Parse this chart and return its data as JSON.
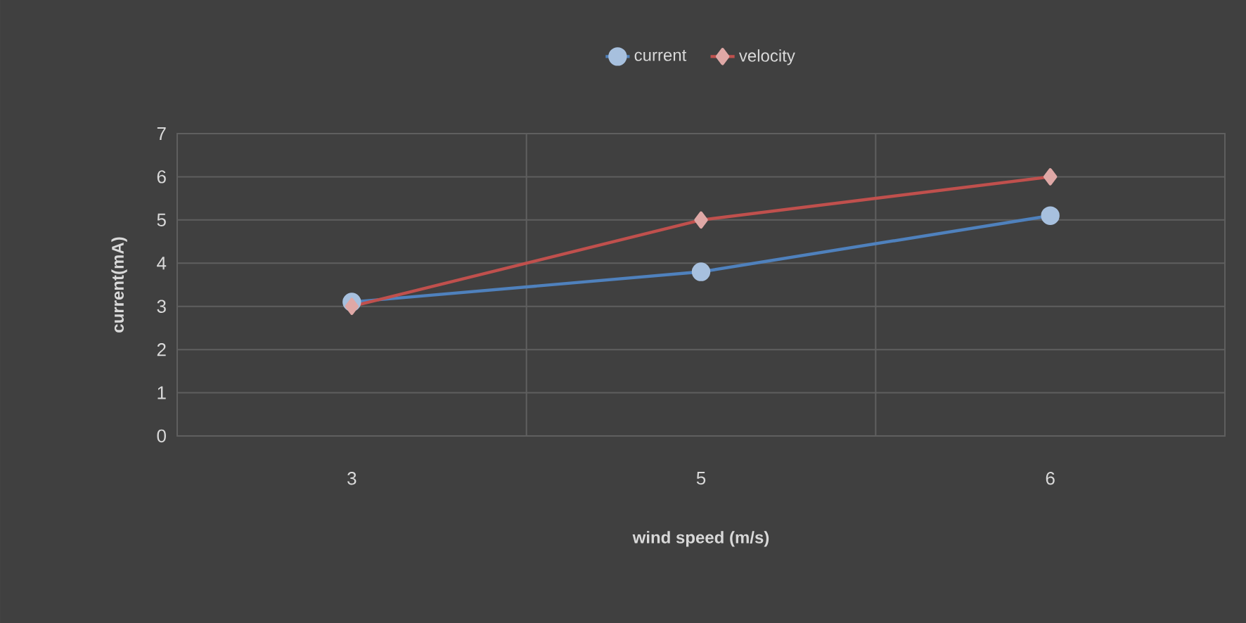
{
  "chart_data": {
    "type": "line",
    "xlabel": "wind speed (m/s)",
    "ylabel": "current(mA)",
    "categories": [
      "3",
      "5",
      "6"
    ],
    "series": [
      {
        "name": "current",
        "color": "#4f81bd",
        "marker": "circle",
        "values": [
          3.1,
          3.8,
          5.1
        ]
      },
      {
        "name": "velocity",
        "color": "#c0504d",
        "marker": "diamond",
        "values": [
          3.0,
          5.0,
          6.0
        ]
      }
    ],
    "ylim": [
      0,
      7
    ],
    "yticks": [
      0,
      1,
      2,
      3,
      4,
      5,
      6,
      7
    ],
    "grid": true,
    "legend": "top"
  }
}
